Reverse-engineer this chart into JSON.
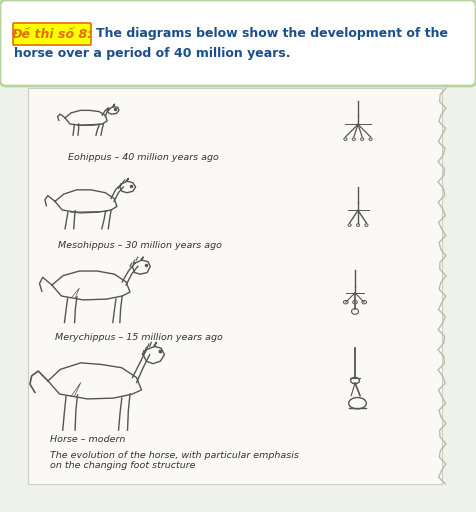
{
  "outer_bg": "#eef2e8",
  "header_bg": "#ffffff",
  "header_border_color": "#b8d4a0",
  "header_highlight_text": "Đề thi số 8:",
  "header_highlight_color": "#e07000",
  "header_highlight_bg": "#ffff00",
  "header_main_color": "#1a4f8a",
  "diagram_bg": "#faf9f5",
  "diagram_border": "#cccccc",
  "lc": "#555555",
  "label1": "Eohippus – 40 million years ago",
  "label2": "Mesohippus – 30 million years ago",
  "label3": "Merychippus – 15 million years ago",
  "label4": "Horse – modern",
  "caption_line1": "The evolution of the horse, with particular emphasis",
  "caption_line2": "on the changing foot structure",
  "label_fontsize": 6.8,
  "caption_fontsize": 6.8,
  "header_fontsize": 9.0
}
